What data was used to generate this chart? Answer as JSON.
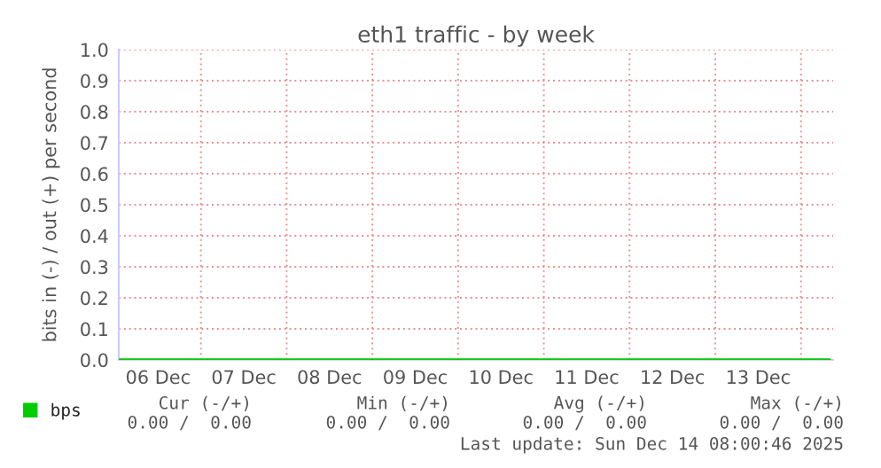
{
  "chart_data": {
    "type": "line",
    "title": "eth1 traffic - by week",
    "ylabel": "bits in (-) / out (+) per second",
    "series": [
      {
        "name": "bps",
        "color": "#00cc00",
        "x": [
          "2025-12-06T01:00",
          "2025-12-14T08:00"
        ],
        "values": [
          0,
          0
        ]
      }
    ],
    "xlim": [
      "2025-12-06T01:00",
      "2025-12-14T09:00"
    ],
    "xticks": [
      {
        "value": "2025-12-07T00:00",
        "label": null
      },
      {
        "value": "2025-12-08T00:00",
        "label": null
      },
      {
        "value": "2025-12-09T00:00",
        "label": null
      },
      {
        "value": "2025-12-10T00:00",
        "label": null
      },
      {
        "value": "2025-12-11T00:00",
        "label": null
      },
      {
        "value": "2025-12-12T00:00",
        "label": null
      },
      {
        "value": "2025-12-13T00:00",
        "label": null
      },
      {
        "value": "2025-12-14T00:00",
        "label": null
      },
      {
        "value": "2025-12-06T12:00",
        "label": "06 Dec"
      },
      {
        "value": "2025-12-07T12:00",
        "label": "07 Dec"
      },
      {
        "value": "2025-12-08T12:00",
        "label": "08 Dec"
      },
      {
        "value": "2025-12-09T12:00",
        "label": "09 Dec"
      },
      {
        "value": "2025-12-10T12:00",
        "label": "10 Dec"
      },
      {
        "value": "2025-12-11T12:00",
        "label": "11 Dec"
      },
      {
        "value": "2025-12-12T12:00",
        "label": "12 Dec"
      },
      {
        "value": "2025-12-13T12:00",
        "label": "13 Dec"
      }
    ],
    "ylim": [
      0,
      1
    ],
    "yticks": [
      {
        "value": 0,
        "label": "0.0"
      },
      {
        "value": 0.1,
        "label": "0.1"
      },
      {
        "value": 0.2,
        "label": "0.2"
      },
      {
        "value": 0.3,
        "label": "0.3"
      },
      {
        "value": 0.4,
        "label": "0.4"
      },
      {
        "value": 0.5,
        "label": "0.5"
      },
      {
        "value": 0.6,
        "label": "0.6"
      },
      {
        "value": 0.7,
        "label": "0.7"
      },
      {
        "value": 0.8,
        "label": "0.8"
      },
      {
        "value": 0.9,
        "label": "0.9"
      },
      {
        "value": 1,
        "label": "1.0"
      }
    ],
    "grid": true,
    "legend": "bottom left",
    "marker": "none",
    "line_style": "solid",
    "annotations": [
      "Cur (-/+)",
      "Min (-/+)",
      "Avg (-/+)",
      "Max (-/+)",
      "0.00 /  0.00",
      "0.00 /  0.00",
      "0.00 /  0.00",
      "0.00 /  0.00",
      "Last update: Sun Dec 14 08:00:46 2025"
    ]
  }
}
